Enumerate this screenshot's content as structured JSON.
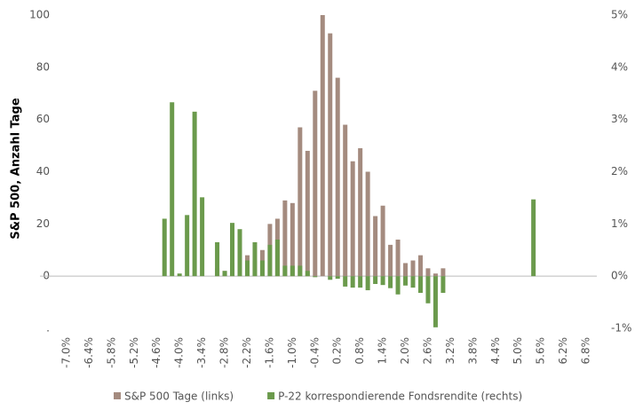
{
  "chart_data": {
    "type": "bar",
    "y_axis_label": "S&P 500, Anzahl Tage",
    "categories": [
      "-7.0%",
      null,
      null,
      "-6.4%",
      null,
      null,
      "-5.8%",
      null,
      null,
      "-5.2%",
      null,
      null,
      "-4.6%",
      null,
      null,
      "-4.0%",
      null,
      null,
      "-3.4%",
      null,
      null,
      "-2.8%",
      null,
      null,
      "-2.2%",
      null,
      null,
      "-1.6%",
      null,
      null,
      "-1.0%",
      null,
      null,
      "-0.4%",
      null,
      null,
      "0.2%",
      null,
      null,
      "0.8%",
      null,
      null,
      "1.4%",
      null,
      null,
      "2.0%",
      null,
      null,
      "2.6%",
      null,
      null,
      "3.2%",
      null,
      null,
      "3.8%",
      null,
      null,
      "4.4%",
      null,
      null,
      "5.0%",
      null,
      null,
      "5.6%",
      null,
      null,
      "6.2%",
      null,
      null,
      "6.8%"
    ],
    "series": [
      {
        "name": "S&P 500 Tage (links)",
        "color": "#a48b7f",
        "axis": "y",
        "values": [
          null,
          null,
          null,
          null,
          null,
          null,
          null,
          null,
          null,
          null,
          null,
          null,
          null,
          null,
          null,
          null,
          null,
          null,
          null,
          null,
          3,
          2,
          5,
          4,
          8,
          6,
          10,
          20,
          22,
          29,
          28,
          57,
          48,
          71,
          100,
          93,
          76,
          58,
          44,
          49,
          40,
          23,
          27,
          12,
          14,
          5,
          6,
          8,
          3,
          1,
          3,
          null,
          null,
          null,
          null,
          null,
          null,
          null,
          null,
          null,
          null,
          null,
          null,
          null,
          null,
          null,
          null,
          null,
          null,
          null
        ]
      },
      {
        "name": "P-22 korrespondierende Fondsrendite (rechts)",
        "color": "#6b9a4c",
        "axis": "y2",
        "values": [
          null,
          null,
          null,
          null,
          null,
          null,
          null,
          null,
          null,
          null,
          null,
          null,
          null,
          1.1,
          3.33,
          0.05,
          1.17,
          3.15,
          1.51,
          null,
          0.65,
          0.1,
          1.02,
          0.9,
          0.3,
          0.65,
          0.3,
          0.6,
          0.7,
          0.2,
          0.2,
          0.2,
          0.1,
          -0.02,
          null,
          -0.07,
          -0.05,
          -0.2,
          -0.22,
          -0.22,
          -0.27,
          -0.15,
          -0.17,
          -0.23,
          -0.35,
          -0.18,
          -0.22,
          -0.32,
          -0.52,
          -0.98,
          -0.32,
          null,
          null,
          null,
          null,
          null,
          null,
          null,
          null,
          null,
          null,
          null,
          1.47,
          null,
          null,
          null,
          null,
          null,
          null,
          null
        ]
      }
    ],
    "ylim": [
      -20,
      100
    ],
    "yticks": [
      {
        "value": -20,
        "label": "."
      },
      0,
      20,
      40,
      60,
      80,
      100
    ],
    "y2lim": [
      -1,
      5
    ],
    "y2ticks": [
      {
        "value": -1,
        "label": "-1%"
      },
      {
        "value": 0,
        "label": "0%"
      },
      {
        "value": 1,
        "label": "1%"
      },
      {
        "value": 2,
        "label": "2%"
      },
      {
        "value": 3,
        "label": "3%"
      },
      {
        "value": 4,
        "label": "4%"
      },
      {
        "value": 5,
        "label": "5%"
      }
    ],
    "legend": "bottom"
  }
}
